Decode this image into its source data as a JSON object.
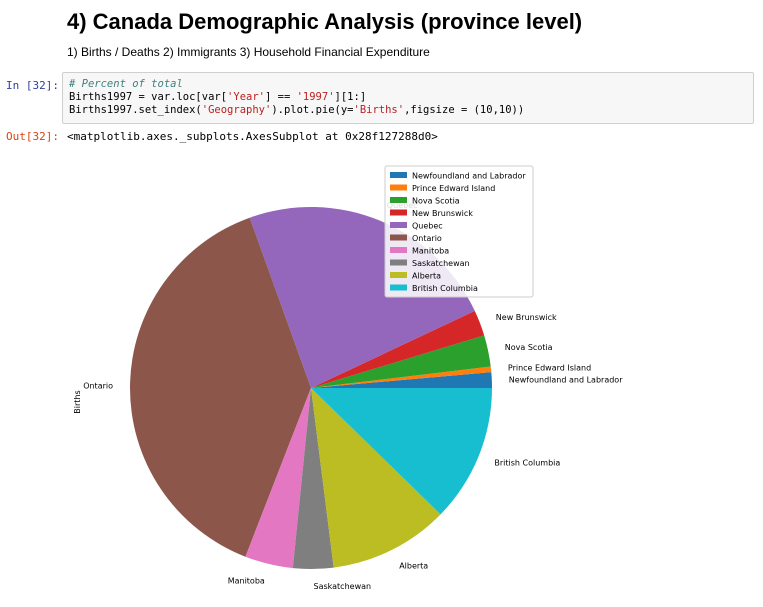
{
  "notebook": {
    "title": "4) Canada Demographic Analysis (province level)",
    "subtitle": "1) Births / Deaths 2) Immigrants 3) Household Financial Expenditure"
  },
  "cell": {
    "in_prompt": "In [32]:",
    "out_prompt": "Out[32]:",
    "code": {
      "comment": "# Percent of total",
      "line2_a": "Births1997 = var.loc[var[",
      "line2_s1": "'Year'",
      "line2_b": "] == ",
      "line2_s2": "'1997'",
      "line2_c": "][1:]",
      "line3_a": "Births1997.set_index(",
      "line3_s1": "'Geography'",
      "line3_b": ").plot.pie(y=",
      "line3_s2": "'Births'",
      "line3_c": ",figsize = (10,10))"
    },
    "output": "<matplotlib.axes._subplots.AxesSubplot at 0x28f127288d0>"
  },
  "chart_data": {
    "type": "pie",
    "ylabel": "Births",
    "legend_position": "upper right",
    "start_angle_deg": 0,
    "direction": "counterclockwise",
    "slices": [
      {
        "label": "Newfoundland and Labrador",
        "value": 1.4,
        "color": "#1f77b4"
      },
      {
        "label": "Prince Edward Island",
        "value": 0.5,
        "color": "#ff7f0e"
      },
      {
        "label": "Nova Scotia",
        "value": 2.8,
        "color": "#2ca02c"
      },
      {
        "label": "New Brunswick",
        "value": 2.3,
        "color": "#d62728"
      },
      {
        "label": "Quebec",
        "value": 23.5,
        "color": "#9467bd"
      },
      {
        "label": "Ontario",
        "value": 38.6,
        "color": "#8c564b"
      },
      {
        "label": "Manitoba",
        "value": 4.3,
        "color": "#e377c2"
      },
      {
        "label": "Saskatchewan",
        "value": 3.6,
        "color": "#7f7f7f"
      },
      {
        "label": "Alberta",
        "value": 10.7,
        "color": "#bcbd22"
      },
      {
        "label": "British Columbia",
        "value": 12.3,
        "color": "#17becf"
      }
    ]
  }
}
